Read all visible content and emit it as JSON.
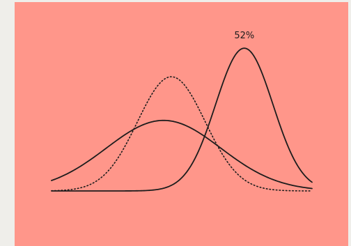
{
  "chart_data": {
    "type": "line",
    "title": "",
    "xlabel": "",
    "ylabel": "",
    "xlim": [
      0,
      10
    ],
    "ylim": [
      0,
      1
    ],
    "grid": false,
    "legend": "none",
    "x_step": 0.05,
    "series": [
      {
        "style": "solid",
        "distribution": "normal",
        "mean": 4.3,
        "sd": 2.2,
        "peak": 0.42,
        "baseline": 0.0
      },
      {
        "style": "dotted",
        "distribution": "normal",
        "mean": 4.6,
        "sd": 1.3,
        "peak": 0.68,
        "baseline": 0.0
      },
      {
        "style": "solid",
        "distribution": "normal",
        "mean": 7.4,
        "sd": 1.1,
        "peak": 0.85,
        "baseline": 0.0
      }
    ],
    "annotations": [
      {
        "text": "52%",
        "series_index": 2
      }
    ]
  },
  "colors": {
    "background": "#ff968a",
    "page": "#efeeea",
    "stroke": "#1c1c1c"
  }
}
